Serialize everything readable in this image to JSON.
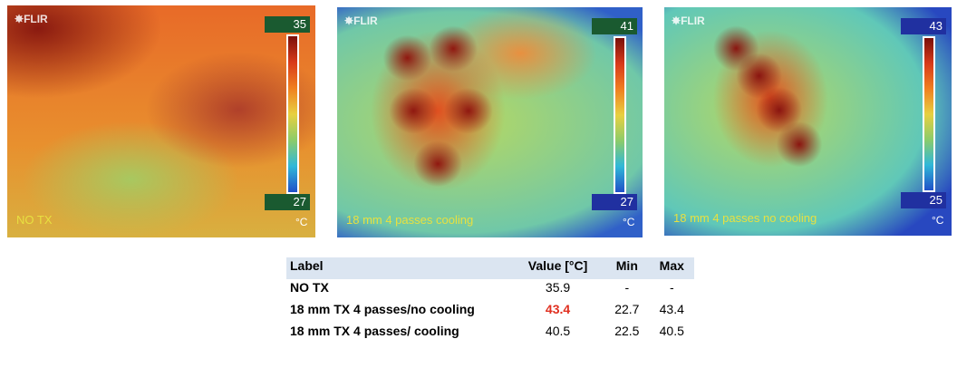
{
  "images": [
    {
      "logo": "FLIR",
      "scale_max": "35",
      "scale_min": "27",
      "unit": "°C",
      "caption": "NO TX"
    },
    {
      "logo": "FLIR",
      "scale_max": "41",
      "scale_min": "27",
      "unit": "°C",
      "caption": "18 mm 4 passes cooling"
    },
    {
      "logo": "FLIR",
      "scale_max": "43",
      "scale_min": "25",
      "unit": "°C",
      "caption": "18 mm 4 passes no cooling"
    }
  ],
  "table": {
    "header": [
      "Label",
      "Value [°C]",
      "Min",
      "Max"
    ],
    "rows": [
      [
        "NO TX",
        "35.9",
        "-",
        "-"
      ],
      [
        "18 mm TX 4 passes/no cooling",
        "43.4",
        "22.7",
        "43.4"
      ],
      [
        "18 mm TX 4 passes/ cooling",
        "40.5",
        "22.5",
        "40.5"
      ]
    ]
  }
}
